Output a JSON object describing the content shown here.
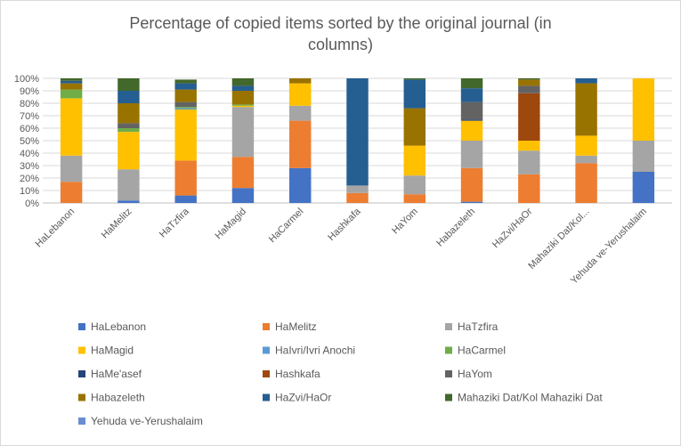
{
  "chart_data": {
    "type": "bar",
    "stacked": true,
    "percent": true,
    "title_lines": [
      "Percentage of copied items sorted by the original journal (in",
      "columns)"
    ],
    "categories": [
      "HaLebanon",
      "HaMelitz",
      "HaTzfira",
      "HaMagid",
      "HaCarmel",
      "Hashkafa",
      "HaYom",
      "Habazeleth",
      "HaZvi/HaOr",
      "Mahaziki Dat/Kol...",
      "Yehuda ve-Yerushalaim"
    ],
    "yticks": [
      "0%",
      "10%",
      "20%",
      "30%",
      "40%",
      "50%",
      "60%",
      "70%",
      "80%",
      "90%",
      "100%"
    ],
    "ylim": [
      0,
      100
    ],
    "legend_position": "bottom",
    "series": [
      {
        "name": "HaLebanon",
        "color": "#4472c4",
        "values": [
          0,
          2,
          6,
          12,
          28,
          0,
          0,
          1,
          0,
          0,
          25
        ]
      },
      {
        "name": "HaMelitz",
        "color": "#ed7d31",
        "values": [
          17,
          0,
          28,
          25,
          38,
          8,
          7,
          27,
          23,
          32,
          0
        ]
      },
      {
        "name": "HaTzfira",
        "color": "#a5a5a5",
        "values": [
          21,
          25,
          0,
          40,
          12,
          6,
          15,
          22,
          19,
          6,
          25
        ]
      },
      {
        "name": "HaMagid",
        "color": "#ffc000",
        "values": [
          46,
          30,
          41,
          1,
          18,
          0,
          24,
          16,
          8,
          16,
          50
        ]
      },
      {
        "name": "HaIvri/Ivri Anochi",
        "color": "#5b9bd5",
        "values": [
          0,
          0,
          1,
          0,
          0,
          0,
          0,
          0,
          0,
          0,
          0
        ]
      },
      {
        "name": "HaCarmel",
        "color": "#70ad47",
        "values": [
          7,
          3,
          1,
          1,
          0,
          0,
          0,
          0,
          0,
          0,
          0
        ]
      },
      {
        "name": "HaMe'asef",
        "color": "#264478",
        "values": [
          0,
          0,
          0,
          0,
          0,
          0,
          0,
          1,
          0,
          0,
          0
        ]
      },
      {
        "name": "Hashkafa",
        "color": "#9e480e",
        "values": [
          0,
          0,
          0,
          0,
          0,
          0,
          0,
          0,
          38,
          0,
          0
        ]
      },
      {
        "name": "HaYom",
        "color": "#636363",
        "values": [
          0,
          4,
          4,
          0,
          0,
          0,
          0,
          14,
          6,
          0,
          0
        ]
      },
      {
        "name": "Habazeleth",
        "color": "#997300",
        "values": [
          5,
          16,
          10,
          11,
          4,
          0,
          30,
          0,
          5,
          42,
          0
        ]
      },
      {
        "name": "HaZvi/HaOr",
        "color": "#255e91",
        "values": [
          2,
          10,
          5,
          4,
          0,
          86,
          23,
          11,
          0,
          4,
          0
        ]
      },
      {
        "name": "Mahaziki Dat/Kol Mahaziki Dat",
        "color": "#43682b",
        "values": [
          2,
          10,
          3,
          6,
          0,
          0,
          1,
          8,
          1,
          0,
          0
        ]
      },
      {
        "name": "Yehuda ve-Yerushalaim",
        "color": "#698ed0",
        "values": [
          0,
          0,
          0,
          0,
          0,
          0,
          0,
          0,
          0,
          0,
          0
        ]
      }
    ],
    "grid_color": "#d9d9d9",
    "axis_color": "#bfbfbf"
  }
}
